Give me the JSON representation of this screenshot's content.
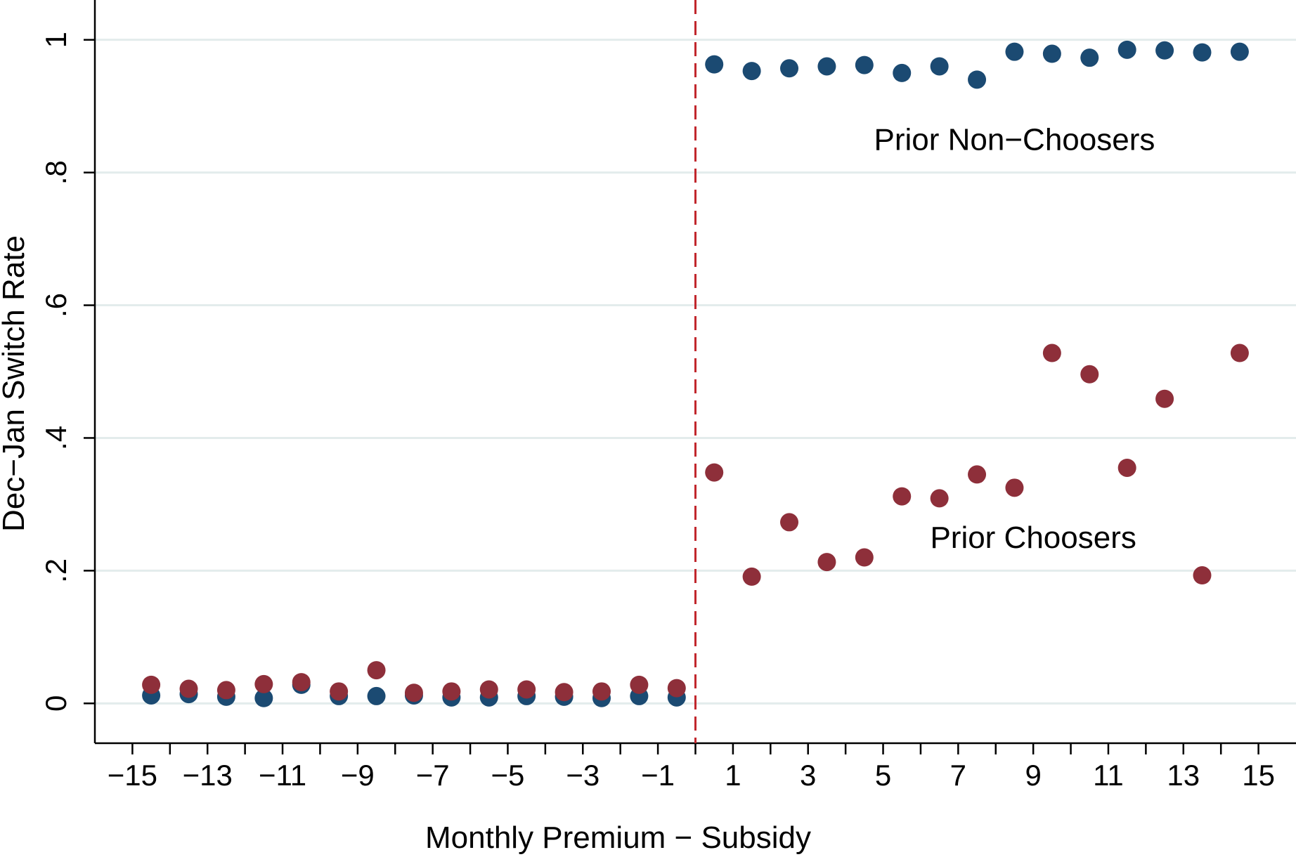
{
  "chart_data": {
    "type": "scatter",
    "title": "",
    "xlabel": "Monthly Premium − Subsidy",
    "ylabel": "Dec−Jan Switch Rate",
    "xlim": [
      -16,
      16
    ],
    "ylim": [
      -0.06,
      1.06
    ],
    "x_ticks": [
      -15,
      -13,
      -11,
      -9,
      -7,
      -5,
      -3,
      -1,
      1,
      3,
      5,
      7,
      9,
      11,
      13,
      15
    ],
    "x_tick_labels": [
      "−15",
      "−13",
      "−11",
      "−9",
      "−7",
      "−5",
      "−3",
      "−1",
      "1",
      "3",
      "5",
      "7",
      "9",
      "11",
      "13",
      "15"
    ],
    "x_minor_ticks": [
      -14,
      -12,
      -10,
      -8,
      -6,
      -4,
      -2,
      0,
      2,
      4,
      6,
      8,
      10,
      12,
      14
    ],
    "y_ticks": [
      0,
      0.2,
      0.4,
      0.6,
      0.8,
      1
    ],
    "y_tick_labels": [
      "0",
      ".2",
      ".4",
      ".6",
      ".8",
      "1"
    ],
    "grid": true,
    "vline": {
      "x": 0,
      "color": "#c1272d",
      "style": "dashed"
    },
    "annotations": [
      {
        "text": "Prior Non−Choosers",
        "x": 8.5,
        "y": 0.85
      },
      {
        "text": "Prior Choosers",
        "x": 9,
        "y": 0.25
      }
    ],
    "series": [
      {
        "name": "Prior Non-Choosers",
        "color": "#1b4a72",
        "x": [
          -14.5,
          -13.5,
          -12.5,
          -11.5,
          -10.5,
          -9.5,
          -8.5,
          -7.5,
          -6.5,
          -5.5,
          -4.5,
          -3.5,
          -2.5,
          -1.5,
          -0.5,
          0.5,
          1.5,
          2.5,
          3.5,
          4.5,
          5.5,
          6.5,
          7.5,
          8.5,
          9.5,
          10.5,
          11.5,
          12.5,
          13.5,
          14.5
        ],
        "y": [
          0.012,
          0.014,
          0.01,
          0.008,
          0.028,
          0.011,
          0.011,
          0.012,
          0.009,
          0.009,
          0.011,
          0.01,
          0.008,
          0.011,
          0.009,
          0.963,
          0.953,
          0.957,
          0.96,
          0.962,
          0.95,
          0.96,
          0.94,
          0.982,
          0.979,
          0.973,
          0.985,
          0.984,
          0.981,
          0.982
        ]
      },
      {
        "name": "Prior Choosers",
        "color": "#8e2f3a",
        "x": [
          -14.5,
          -13.5,
          -12.5,
          -11.5,
          -10.5,
          -9.5,
          -8.5,
          -7.5,
          -6.5,
          -5.5,
          -4.5,
          -3.5,
          -2.5,
          -1.5,
          -0.5,
          0.5,
          1.5,
          2.5,
          3.5,
          4.5,
          5.5,
          6.5,
          7.5,
          8.5,
          9.5,
          10.5,
          11.5,
          12.5,
          13.5,
          14.5
        ],
        "y": [
          0.028,
          0.022,
          0.02,
          0.029,
          0.032,
          0.018,
          0.05,
          0.016,
          0.018,
          0.021,
          0.021,
          0.017,
          0.018,
          0.028,
          0.023,
          0.348,
          0.191,
          0.273,
          0.213,
          0.22,
          0.312,
          0.309,
          0.345,
          0.325,
          0.528,
          0.496,
          0.355,
          0.459,
          0.193,
          0.528
        ]
      }
    ]
  }
}
